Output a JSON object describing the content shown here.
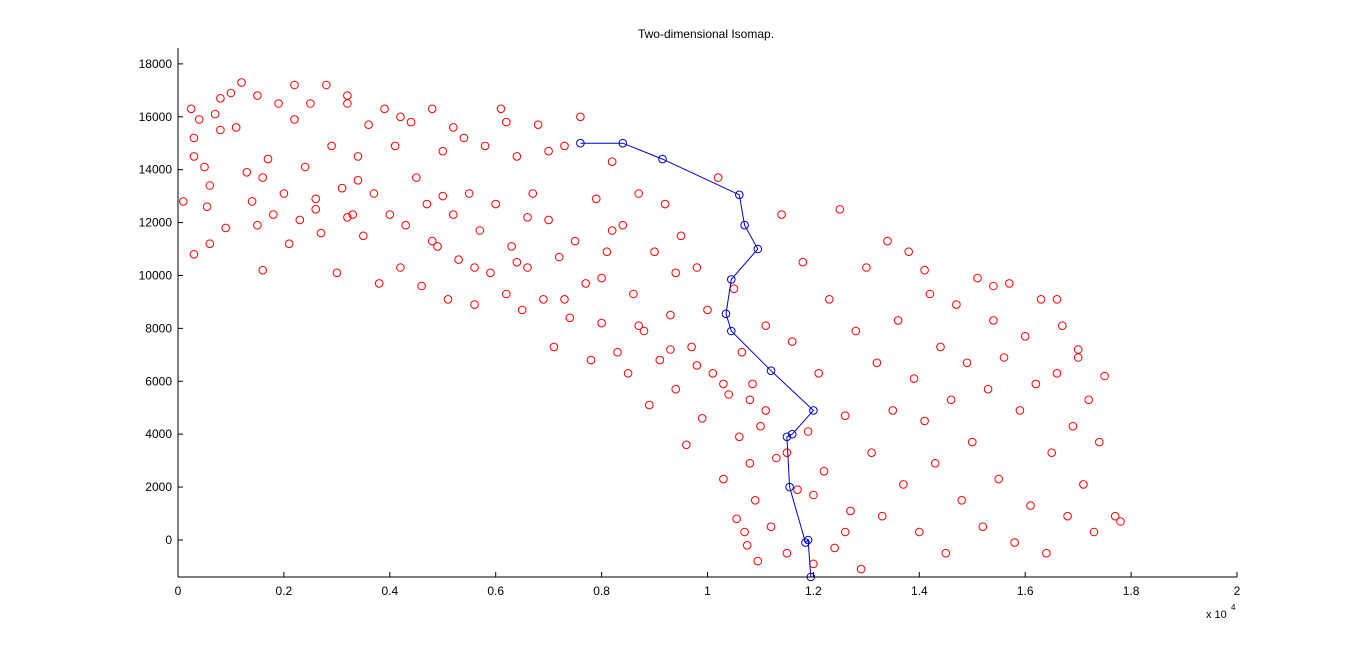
{
  "colors": {
    "points": "#ff0000",
    "path": "#0000cc",
    "axes": "#000000",
    "background": "#ffffff"
  },
  "chart_data": {
    "type": "scatter",
    "title": "Two-dimensional Isomap.",
    "xlabel": "",
    "ylabel": "",
    "x_exponent_label": "x 10",
    "x_exponent_power": "4",
    "xlim": [
      0,
      20000
    ],
    "ylim": [
      -1400,
      18600
    ],
    "x_ticks": [
      0,
      2000,
      4000,
      6000,
      8000,
      10000,
      12000,
      14000,
      16000,
      18000,
      20000
    ],
    "x_tick_labels": [
      "0",
      "0.2",
      "0.4",
      "0.6",
      "0.8",
      "1",
      "1.2",
      "1.4",
      "1.6",
      "1.8",
      "2"
    ],
    "y_ticks": [
      0,
      2000,
      4000,
      6000,
      8000,
      10000,
      12000,
      14000,
      16000,
      18000
    ],
    "y_tick_labels": [
      "0",
      "2000",
      "4000",
      "6000",
      "8000",
      "10000",
      "12000",
      "14000",
      "16000",
      "18000"
    ],
    "grid": false,
    "series": [
      {
        "marker": "circle",
        "color": "#ff0000",
        "points": [
          [
            100,
            12800
          ],
          [
            250,
            16300
          ],
          [
            300,
            14500
          ],
          [
            300,
            10800
          ],
          [
            400,
            15900
          ],
          [
            500,
            14100
          ],
          [
            550,
            12600
          ],
          [
            600,
            13400
          ],
          [
            700,
            16100
          ],
          [
            800,
            15500
          ],
          [
            900,
            11800
          ],
          [
            1000,
            16900
          ],
          [
            1100,
            15600
          ],
          [
            1200,
            17300
          ],
          [
            1300,
            13900
          ],
          [
            1400,
            12800
          ],
          [
            1500,
            16800
          ],
          [
            1600,
            10200
          ],
          [
            1700,
            14400
          ],
          [
            1800,
            12300
          ],
          [
            1900,
            16500
          ],
          [
            2000,
            13100
          ],
          [
            2100,
            11200
          ],
          [
            2200,
            15900
          ],
          [
            2300,
            12100
          ],
          [
            2400,
            14100
          ],
          [
            2500,
            16500
          ],
          [
            2600,
            12900
          ],
          [
            2700,
            11600
          ],
          [
            2800,
            17200
          ],
          [
            2900,
            14900
          ],
          [
            3000,
            10100
          ],
          [
            3100,
            13300
          ],
          [
            3200,
            16500
          ],
          [
            3300,
            12300
          ],
          [
            3400,
            14500
          ],
          [
            3500,
            11500
          ],
          [
            3600,
            15700
          ],
          [
            3700,
            13100
          ],
          [
            3800,
            9700
          ],
          [
            3900,
            16300
          ],
          [
            4000,
            12300
          ],
          [
            4100,
            14900
          ],
          [
            4200,
            10300
          ],
          [
            4300,
            11900
          ],
          [
            4400,
            15800
          ],
          [
            4500,
            13700
          ],
          [
            4600,
            9600
          ],
          [
            4700,
            12700
          ],
          [
            4800,
            16300
          ],
          [
            4900,
            11100
          ],
          [
            5000,
            14700
          ],
          [
            5100,
            9100
          ],
          [
            5200,
            12300
          ],
          [
            5300,
            10600
          ],
          [
            5400,
            15200
          ],
          [
            5500,
            13100
          ],
          [
            5600,
            8900
          ],
          [
            5700,
            11700
          ],
          [
            5800,
            14900
          ],
          [
            5900,
            10100
          ],
          [
            6000,
            12700
          ],
          [
            6100,
            16300
          ],
          [
            6200,
            9300
          ],
          [
            6300,
            11100
          ],
          [
            6400,
            14500
          ],
          [
            6500,
            8700
          ],
          [
            6600,
            10300
          ],
          [
            6700,
            13100
          ],
          [
            6800,
            15700
          ],
          [
            6900,
            9100
          ],
          [
            7000,
            12100
          ],
          [
            7100,
            7300
          ],
          [
            7200,
            10700
          ],
          [
            7300,
            14900
          ],
          [
            7400,
            8400
          ],
          [
            7500,
            11300
          ],
          [
            7600,
            16000
          ],
          [
            7700,
            9700
          ],
          [
            7800,
            6800
          ],
          [
            7900,
            12900
          ],
          [
            8000,
            8200
          ],
          [
            8100,
            10900
          ],
          [
            8200,
            14300
          ],
          [
            8300,
            7100
          ],
          [
            8400,
            11900
          ],
          [
            8500,
            6300
          ],
          [
            8600,
            9300
          ],
          [
            8700,
            13100
          ],
          [
            8800,
            7900
          ],
          [
            8900,
            5100
          ],
          [
            9000,
            10900
          ],
          [
            9100,
            6800
          ],
          [
            9200,
            12700
          ],
          [
            9300,
            8500
          ],
          [
            9400,
            5700
          ],
          [
            9500,
            11500
          ],
          [
            9600,
            3600
          ],
          [
            9700,
            7300
          ],
          [
            9800,
            10300
          ],
          [
            9900,
            4600
          ],
          [
            10000,
            8700
          ],
          [
            10100,
            6300
          ],
          [
            10200,
            13700
          ],
          [
            10300,
            2300
          ],
          [
            10400,
            5500
          ],
          [
            10500,
            9500
          ],
          [
            10550,
            800
          ],
          [
            10600,
            3900
          ],
          [
            10650,
            7100
          ],
          [
            10700,
            300
          ],
          [
            10750,
            -200
          ],
          [
            10800,
            2900
          ],
          [
            10850,
            5900
          ],
          [
            10900,
            1500
          ],
          [
            10950,
            -800
          ],
          [
            11000,
            4300
          ],
          [
            11100,
            8100
          ],
          [
            11200,
            500
          ],
          [
            11300,
            3100
          ],
          [
            11400,
            12300
          ],
          [
            11500,
            -500
          ],
          [
            11600,
            7500
          ],
          [
            11700,
            1900
          ],
          [
            11800,
            10500
          ],
          [
            11900,
            4100
          ],
          [
            12000,
            -900
          ],
          [
            12100,
            6300
          ],
          [
            12200,
            2600
          ],
          [
            12300,
            9100
          ],
          [
            12400,
            -300
          ],
          [
            12500,
            12500
          ],
          [
            12600,
            4700
          ],
          [
            12700,
            1100
          ],
          [
            12800,
            7900
          ],
          [
            12900,
            -1100
          ],
          [
            13000,
            10300
          ],
          [
            13100,
            3300
          ],
          [
            13200,
            6700
          ],
          [
            13300,
            900
          ],
          [
            13400,
            11300
          ],
          [
            13500,
            4900
          ],
          [
            13600,
            8300
          ],
          [
            13700,
            2100
          ],
          [
            13800,
            10900
          ],
          [
            13900,
            6100
          ],
          [
            14000,
            300
          ],
          [
            14100,
            4500
          ],
          [
            14200,
            9300
          ],
          [
            14300,
            2900
          ],
          [
            14400,
            7300
          ],
          [
            14500,
            -500
          ],
          [
            14600,
            5300
          ],
          [
            14700,
            8900
          ],
          [
            14800,
            1500
          ],
          [
            14900,
            6700
          ],
          [
            15000,
            3700
          ],
          [
            15100,
            9900
          ],
          [
            15200,
            500
          ],
          [
            15300,
            5700
          ],
          [
            15400,
            8300
          ],
          [
            15500,
            2300
          ],
          [
            15600,
            6900
          ],
          [
            15700,
            9700
          ],
          [
            15800,
            -100
          ],
          [
            15900,
            4900
          ],
          [
            16000,
            7700
          ],
          [
            16100,
            1300
          ],
          [
            16200,
            5900
          ],
          [
            16300,
            9100
          ],
          [
            16400,
            -500
          ],
          [
            16500,
            3300
          ],
          [
            16600,
            6300
          ],
          [
            16700,
            8100
          ],
          [
            16800,
            900
          ],
          [
            16900,
            4300
          ],
          [
            17000,
            6900
          ],
          [
            17100,
            2100
          ],
          [
            17200,
            5300
          ],
          [
            17300,
            300
          ],
          [
            17400,
            3700
          ],
          [
            17500,
            6200
          ],
          [
            17700,
            900
          ],
          [
            17800,
            700
          ],
          [
            600,
            11200
          ],
          [
            1500,
            11900
          ],
          [
            2600,
            12500
          ],
          [
            3200,
            12200
          ],
          [
            4800,
            11300
          ],
          [
            5600,
            10300
          ],
          [
            6400,
            10500
          ],
          [
            7300,
            9100
          ],
          [
            8000,
            9900
          ],
          [
            8700,
            8100
          ],
          [
            9300,
            7200
          ],
          [
            9800,
            6600
          ],
          [
            10300,
            5900
          ],
          [
            10800,
            5300
          ],
          [
            11100,
            4900
          ],
          [
            11500,
            3300
          ],
          [
            12000,
            1700
          ],
          [
            12600,
            300
          ],
          [
            7000,
            14700
          ],
          [
            6200,
            15800
          ],
          [
            5200,
            15600
          ],
          [
            4200,
            16000
          ],
          [
            3200,
            16800
          ],
          [
            2200,
            17200
          ],
          [
            800,
            16700
          ],
          [
            300,
            15200
          ],
          [
            1600,
            13700
          ],
          [
            3400,
            13600
          ],
          [
            5000,
            13000
          ],
          [
            6600,
            12200
          ],
          [
            8200,
            11700
          ],
          [
            9400,
            10100
          ],
          [
            14100,
            10200
          ],
          [
            15400,
            9600
          ],
          [
            16600,
            9100
          ],
          [
            17000,
            7200
          ]
        ]
      },
      {
        "name": "",
        "marker": "circle-line",
        "color": "#0000cc",
        "points": [
          [
            7600,
            15000
          ],
          [
            8400,
            15000
          ],
          [
            9150,
            14400
          ],
          [
            10600,
            13050
          ],
          [
            10700,
            11900
          ],
          [
            10950,
            11000
          ],
          [
            10450,
            9850
          ],
          [
            10350,
            8550
          ],
          [
            10450,
            7900
          ],
          [
            11200,
            6400
          ],
          [
            12000,
            4900
          ],
          [
            11600,
            4000
          ],
          [
            11500,
            3900
          ],
          [
            11550,
            2000
          ],
          [
            11850,
            -100
          ],
          [
            11900,
            0
          ],
          [
            11950,
            -1400
          ]
        ]
      }
    ]
  }
}
